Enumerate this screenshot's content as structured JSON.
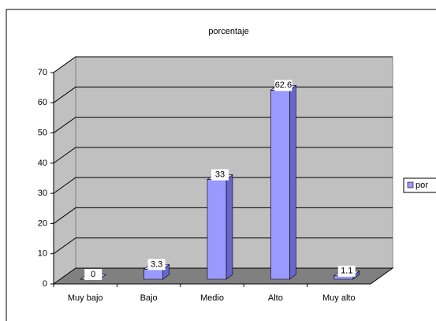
{
  "chart_data": {
    "type": "bar3d",
    "title": "porcentaje",
    "categories": [
      "Muy bajo",
      "Bajo",
      "Medio",
      "Alto",
      "Muy alto"
    ],
    "series": [
      {
        "name": "por",
        "color": "#9999ff",
        "values": [
          0,
          3.3,
          33,
          62.6,
          1.1
        ]
      }
    ],
    "ylim": [
      0,
      70
    ],
    "yticks": [
      0,
      10,
      20,
      30,
      40,
      50,
      60,
      70
    ],
    "grid": true,
    "legend": "right"
  }
}
